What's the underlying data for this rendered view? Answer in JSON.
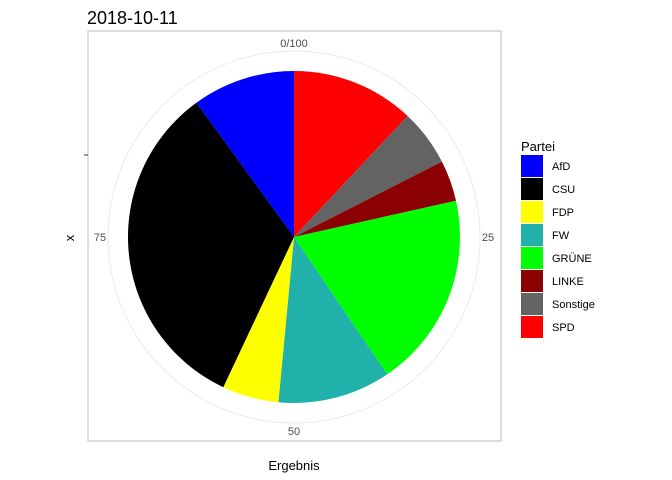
{
  "chart_data": {
    "type": "pie",
    "title": "2018-10-11",
    "xlabel": "Ergebnis",
    "ylabel": "x",
    "theta_ticks": [
      {
        "value": 0,
        "label": "0/100"
      },
      {
        "value": 25,
        "label": "25"
      },
      {
        "value": 50,
        "label": "50"
      },
      {
        "value": 75,
        "label": "75"
      }
    ],
    "legend_title": "Partei",
    "legend_position": "right",
    "categories": [
      "AfD",
      "CSU",
      "FDP",
      "FW",
      "GRÜNE",
      "LINKE",
      "Sonstige",
      "SPD"
    ],
    "values": [
      10,
      33,
      5.5,
      11,
      19,
      4,
      5.5,
      12
    ],
    "colors": [
      "#0000FF",
      "#000000",
      "#FFFF00",
      "#20B2AA",
      "#00FF00",
      "#8B0000",
      "#636363",
      "#FF0000"
    ],
    "slice_order_clockwise_from_top": [
      "SPD",
      "Sonstige",
      "LINKE",
      "GRÜNE",
      "FW",
      "FDP",
      "CSU",
      "AfD"
    ],
    "total": 100
  }
}
